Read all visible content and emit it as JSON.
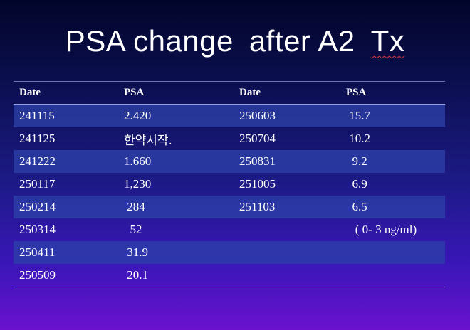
{
  "title": {
    "part1": "PSA change",
    "part2": "after A2",
    "part3": "Tx"
  },
  "table": {
    "headers": [
      "Date",
      "PSA",
      "Date",
      "PSA"
    ],
    "rows": [
      [
        "241115",
        "2.420",
        "250603",
        " 15.7"
      ],
      [
        "241125",
        "한약시작.",
        "250704",
        " 10.2"
      ],
      [
        "241222",
        "1.660",
        "250831",
        "  9.2"
      ],
      [
        "250117",
        "1,230",
        "251005",
        "  6.9"
      ],
      [
        "250214",
        " 284",
        "251103",
        "  6.5"
      ],
      [
        "250314",
        "  52",
        "",
        "   ( 0- 3 ng/ml)"
      ],
      [
        "250411",
        " 31.9",
        "",
        ""
      ],
      [
        "250509",
        " 20.1",
        "",
        ""
      ]
    ]
  }
}
